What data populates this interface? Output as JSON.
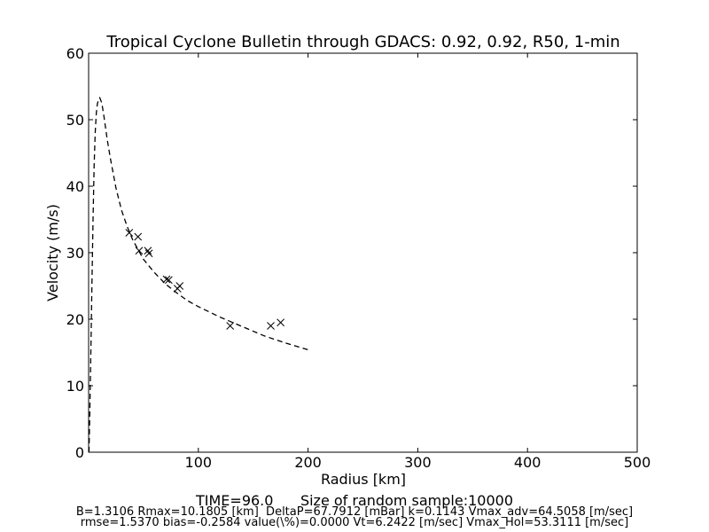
{
  "chart_data": {
    "type": "scatter",
    "title": "Tropical Cyclone Bulletin through GDACS: 0.92, 0.92, R50, 1-min",
    "xlabel": "Radius [km]",
    "ylabel": "Velocity (m/s)",
    "xlim": [
      0,
      500
    ],
    "ylim": [
      0,
      60
    ],
    "x_ticks": [
      100,
      200,
      300,
      400,
      500
    ],
    "x_tick_labels": [
      "100",
      "200",
      "300",
      "400",
      "500"
    ],
    "y_ticks": [
      0,
      10,
      20,
      30,
      40,
      50,
      60
    ],
    "y_tick_labels": [
      "0",
      "10",
      "20",
      "30",
      "40",
      "50",
      "60"
    ],
    "grid": false,
    "series": [
      {
        "style": "dashed-line",
        "color": "#000000",
        "x": [
          0.3,
          1,
          2,
          3,
          4,
          5,
          6,
          7,
          8,
          9,
          10.18,
          12,
          14,
          17,
          20,
          25,
          30,
          35,
          40,
          50,
          60,
          70,
          80,
          90,
          100,
          120,
          140,
          160,
          180,
          200
        ],
        "y": [
          0.0,
          5.0,
          15.0,
          25.0,
          35.0,
          43.0,
          48.0,
          51.0,
          52.4,
          53.0,
          53.3,
          52.5,
          50.5,
          47.0,
          44.0,
          39.7,
          36.4,
          34.0,
          32.0,
          29.0,
          27.0,
          25.3,
          24.0,
          22.8,
          21.9,
          20.3,
          18.9,
          17.5,
          16.4,
          15.4
        ]
      },
      {
        "style": "x-markers",
        "color": "#000000",
        "x": [
          37,
          45,
          46,
          54,
          55,
          71,
          73,
          81,
          83,
          129,
          166,
          175
        ],
        "y": [
          33.0,
          32.4,
          30.3,
          30.3,
          29.9,
          26.0,
          25.9,
          24.6,
          25.0,
          19.0,
          19.0,
          19.5
        ]
      }
    ]
  },
  "footer": {
    "time_line": "TIME=96.0      Size of random sample:10000",
    "params_line_1": "B=1.3106 Rmax=10.1805 [km]  DeltaP=67.7912 [mBar] k=0.1143 Vmax_adv=64.5058 [m/sec]",
    "params_line_2": "rmse=1.5370 bias=-0.2584 value(\\%)=0.0000 Vt=6.2422 [m/sec] Vmax_Hol=53.3111 [m/sec]"
  }
}
